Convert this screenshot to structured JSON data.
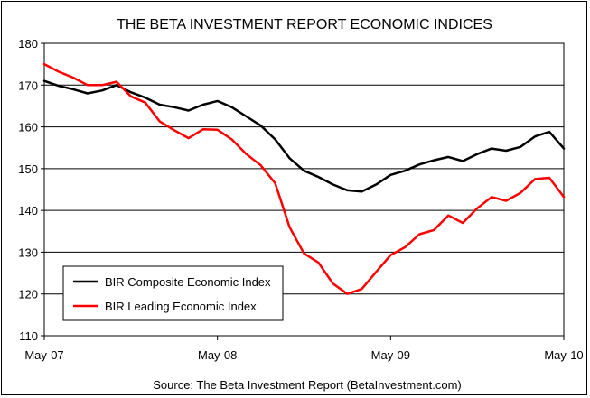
{
  "chart_data": {
    "type": "line",
    "title": "THE BETA INVESTMENT REPORT ECONOMIC INDICES",
    "footer": "Source:  The Beta Investment Report (BetaInvestment.com)",
    "ylim": [
      110,
      180
    ],
    "yticks": [
      110,
      120,
      130,
      140,
      150,
      160,
      170,
      180
    ],
    "x_start": "2007-05",
    "x_end": "2010-05",
    "xtick_labels": [
      "May-07",
      "May-08",
      "May-09",
      "May-10"
    ],
    "grid": "horizontal",
    "legend_position": "bottom-left",
    "x": [
      "2007-05",
      "2007-06",
      "2007-07",
      "2007-08",
      "2007-09",
      "2007-10",
      "2007-11",
      "2007-12",
      "2008-01",
      "2008-02",
      "2008-03",
      "2008-04",
      "2008-05",
      "2008-06",
      "2008-07",
      "2008-08",
      "2008-09",
      "2008-10",
      "2008-11",
      "2008-12",
      "2009-01",
      "2009-02",
      "2009-03",
      "2009-04",
      "2009-05",
      "2009-06",
      "2009-07",
      "2009-08",
      "2009-09",
      "2009-10",
      "2009-11",
      "2009-12",
      "2010-01",
      "2010-02",
      "2010-03",
      "2010-04",
      "2010-05"
    ],
    "series": [
      {
        "name": "BIR Composite Economic Index",
        "color": "#000000",
        "values": [
          171,
          169.8,
          169,
          168,
          168.7,
          170,
          168.3,
          167,
          165.3,
          164.7,
          163.9,
          165.3,
          166.2,
          164.7,
          162.5,
          160.3,
          157,
          152.5,
          149.5,
          148,
          146.2,
          144.8,
          144.5,
          146.2,
          148.5,
          149.5,
          151,
          152,
          152.8,
          151.8,
          153.5,
          154.8,
          154.3,
          155.2,
          157.7,
          158.8,
          154.8
        ]
      },
      {
        "name": "BIR Leading Economic Index",
        "color": "#ff0000",
        "values": [
          175,
          173.2,
          171.8,
          170,
          170,
          170.8,
          167.3,
          165.8,
          161.3,
          159.2,
          157.3,
          159.4,
          159.3,
          157,
          153.5,
          150.8,
          146.5,
          136,
          129.7,
          127.5,
          122.5,
          120,
          121.2,
          125.3,
          129.3,
          131.2,
          134.3,
          135.3,
          138.8,
          137,
          140.5,
          143.2,
          142.3,
          144.2,
          147.5,
          147.8,
          143.2
        ]
      }
    ]
  }
}
